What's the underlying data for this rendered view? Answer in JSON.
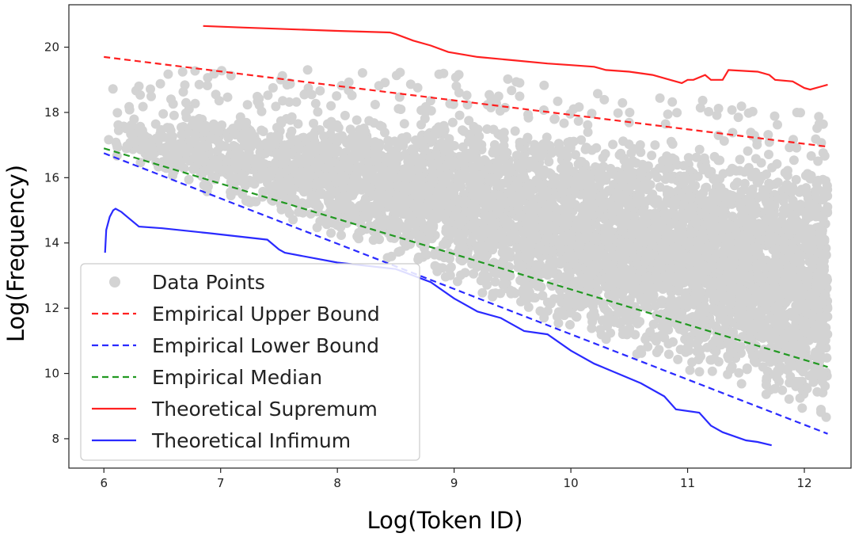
{
  "chart_data": {
    "type": "scatter",
    "title": "",
    "xlabel": "Log(Token ID)",
    "ylabel": "Log(Frequency)",
    "xlim": [
      5.7,
      12.4
    ],
    "ylim": [
      7.1,
      21.3
    ],
    "xticks": [
      6,
      7,
      8,
      9,
      10,
      11,
      12
    ],
    "yticks": [
      8,
      10,
      12,
      14,
      16,
      18,
      20
    ],
    "grid": false,
    "legend_placement": "lower-left",
    "colors": {
      "points": "#d3d3d3",
      "upper": "#ff2020",
      "lower": "#2a2aff",
      "median": "#229922",
      "supremum": "#ff2020",
      "infimum": "#2a2aff"
    },
    "scatter_envelope": {
      "description_x": [
        6.0,
        6.5,
        7.0,
        8.0,
        9.0,
        10.0,
        11.0,
        12.0,
        12.2
      ],
      "upper_y": [
        17.8,
        18.1,
        18.1,
        18.0,
        17.9,
        17.6,
        17.2,
        16.8,
        16.5
      ],
      "lower_y": [
        16.8,
        16.0,
        15.3,
        14.0,
        12.6,
        11.2,
        10.0,
        8.7,
        8.2
      ],
      "x_max": 12.2
    },
    "series": [
      {
        "name": "Empirical Upper Bound",
        "style": "dashed",
        "x": [
          6.0,
          12.2
        ],
        "y": [
          19.7,
          16.95
        ]
      },
      {
        "name": "Empirical Lower Bound",
        "style": "dashed",
        "x": [
          6.0,
          12.2
        ],
        "y": [
          16.75,
          8.15
        ]
      },
      {
        "name": "Empirical Median",
        "style": "dashed",
        "x": [
          6.0,
          12.2
        ],
        "y": [
          16.9,
          10.2
        ]
      },
      {
        "name": "Theoretical Supremum",
        "style": "solid",
        "x": [
          6.85,
          7.2,
          8.0,
          8.45,
          8.5,
          8.65,
          8.8,
          8.95,
          9.2,
          9.5,
          9.8,
          10.0,
          10.2,
          10.3,
          10.5,
          10.7,
          10.85,
          10.95,
          11.0,
          11.05,
          11.15,
          11.2,
          11.3,
          11.35,
          11.6,
          11.7,
          11.75,
          11.9,
          12.0,
          12.05,
          12.15,
          12.2
        ],
        "y": [
          20.65,
          20.6,
          20.5,
          20.45,
          20.4,
          20.2,
          20.05,
          19.85,
          19.7,
          19.6,
          19.5,
          19.45,
          19.4,
          19.3,
          19.25,
          19.15,
          19.0,
          18.9,
          19.0,
          19.0,
          19.15,
          19.0,
          19.0,
          19.3,
          19.25,
          19.15,
          19.0,
          18.95,
          18.75,
          18.7,
          18.8,
          18.85
        ]
      },
      {
        "name": "Theoretical Infimum",
        "style": "solid",
        "x": [
          6.01,
          6.02,
          6.05,
          6.08,
          6.1,
          6.15,
          6.2,
          6.3,
          6.5,
          6.9,
          7.4,
          7.5,
          7.55,
          8.0,
          8.5,
          8.8,
          9.0,
          9.2,
          9.4,
          9.6,
          9.8,
          10.0,
          10.2,
          10.4,
          10.6,
          10.8,
          10.9,
          11.1,
          11.2,
          11.3,
          11.5,
          11.6,
          11.72
        ],
        "y": [
          13.7,
          14.4,
          14.8,
          15.0,
          15.05,
          14.95,
          14.8,
          14.5,
          14.45,
          14.3,
          14.1,
          13.8,
          13.7,
          13.4,
          13.2,
          12.8,
          12.3,
          11.9,
          11.7,
          11.3,
          11.2,
          10.7,
          10.3,
          10.0,
          9.7,
          9.3,
          8.9,
          8.8,
          8.4,
          8.2,
          7.95,
          7.9,
          7.8
        ]
      }
    ],
    "legend": [
      {
        "label": "Data Points",
        "kind": "marker"
      },
      {
        "label": "Empirical Upper Bound",
        "kind": "dashed",
        "series": "upper"
      },
      {
        "label": "Empirical Lower Bound",
        "kind": "dashed",
        "series": "lower"
      },
      {
        "label": "Empirical Median",
        "kind": "dashed",
        "series": "median"
      },
      {
        "label": "Theoretical Supremum",
        "kind": "solid",
        "series": "supremum"
      },
      {
        "label": "Theoretical Infimum",
        "kind": "solid",
        "series": "infimum"
      }
    ]
  }
}
